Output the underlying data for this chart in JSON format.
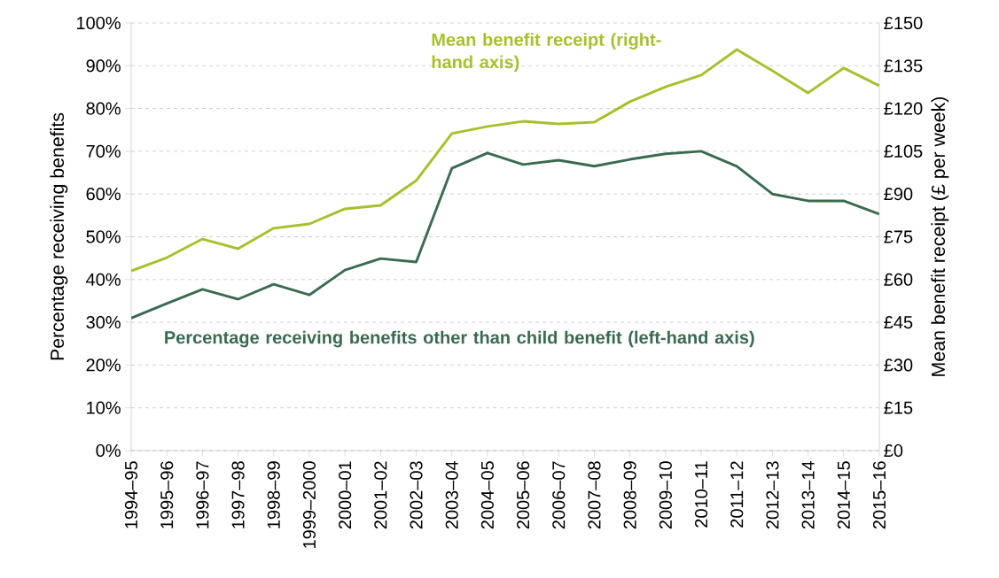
{
  "chart_data": {
    "type": "line",
    "xlabel": null,
    "ylabel": "Percentage receiving benefits",
    "y2label": "Mean benefit receipt (£ per week)",
    "categories": [
      "1994–95",
      "1995–96",
      "1996–97",
      "1997–98",
      "1998–99",
      "1999–2000",
      "2000–01",
      "2001–02",
      "2002–03",
      "2003–04",
      "2004–05",
      "2005–06",
      "2006–07",
      "2007–08",
      "2008–09",
      "2009–10",
      "2010–11",
      "2011–12",
      "2012–13",
      "2013–14",
      "2014–15",
      "2015–16"
    ],
    "series": [
      {
        "name": "Percentage receiving benefits other than child benefit (left-hand axis)",
        "color": "#3a6b50",
        "axis": "y",
        "values": [
          31,
          34.4,
          37.7,
          35.4,
          38.9,
          36.4,
          42.2,
          44.9,
          44.1,
          66,
          69.6,
          66.9,
          67.9,
          66.5,
          68.1,
          69.4,
          70,
          66.5,
          60,
          58.4,
          58.4,
          55.3
        ]
      },
      {
        "name": "Mean benefit receipt (right-hand axis)",
        "color": "#a9bf2a",
        "axis": "y2",
        "values": [
          63,
          67.7,
          74.2,
          70.8,
          78,
          79.5,
          84.8,
          86,
          94.7,
          111.2,
          113.7,
          115.5,
          114.6,
          115.2,
          122.4,
          127.6,
          131.7,
          140.7,
          133.2,
          125.5,
          134.2,
          128
        ]
      }
    ],
    "ylim": [
      0,
      100
    ],
    "yticks": [
      {
        "value": 0,
        "label": "0%"
      },
      {
        "value": 10,
        "label": "10%"
      },
      {
        "value": 20,
        "label": "20%"
      },
      {
        "value": 30,
        "label": "30%"
      },
      {
        "value": 40,
        "label": "40%"
      },
      {
        "value": 50,
        "label": "50%"
      },
      {
        "value": 60,
        "label": "60%"
      },
      {
        "value": 70,
        "label": "70%"
      },
      {
        "value": 80,
        "label": "80%"
      },
      {
        "value": 90,
        "label": "90%"
      },
      {
        "value": 100,
        "label": "100%"
      }
    ],
    "y2lim": [
      0,
      150
    ],
    "y2ticks": [
      {
        "value": 0,
        "label": "£0"
      },
      {
        "value": 15,
        "label": "£15"
      },
      {
        "value": 30,
        "label": "£30"
      },
      {
        "value": 45,
        "label": "£45"
      },
      {
        "value": 60,
        "label": "£60"
      },
      {
        "value": 75,
        "label": "£75"
      },
      {
        "value": 90,
        "label": "£90"
      },
      {
        "value": 105,
        "label": "£105"
      },
      {
        "value": 120,
        "label": "£120"
      },
      {
        "value": 135,
        "label": "£135"
      },
      {
        "value": 150,
        "label": "£150"
      }
    ],
    "grid": "y",
    "legend": false
  }
}
